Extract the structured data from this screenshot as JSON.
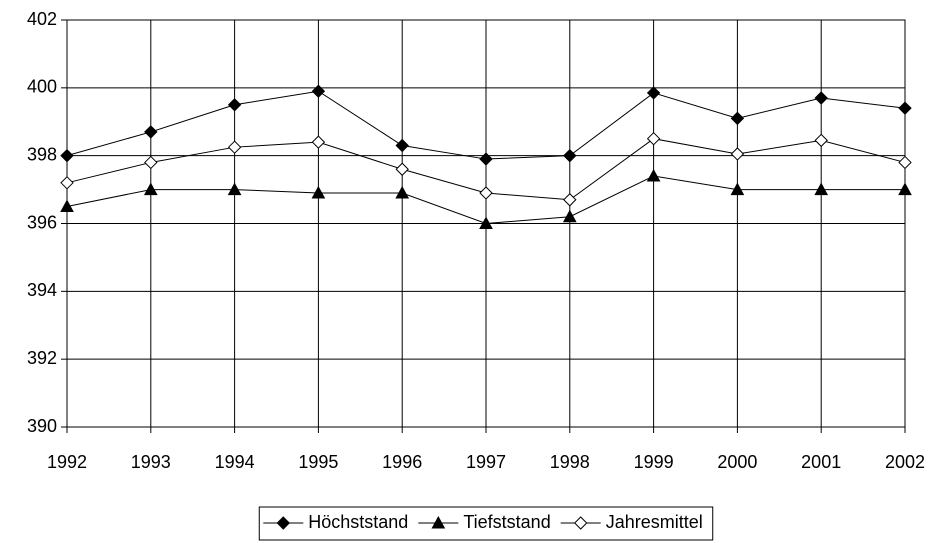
{
  "chart_data": {
    "type": "line",
    "x": [
      1992,
      1993,
      1994,
      1995,
      1996,
      1997,
      1998,
      1999,
      2000,
      2001,
      2002
    ],
    "xlim": [
      1992,
      2002
    ],
    "xticks": [
      1992,
      1993,
      1994,
      1995,
      1996,
      1997,
      1998,
      1999,
      2000,
      2001,
      2002
    ],
    "ylim": [
      390,
      402
    ],
    "yticks": [
      390,
      392,
      394,
      396,
      398,
      400,
      402
    ],
    "grid": true,
    "legend": "bottom",
    "series": [
      {
        "name": "Höchststand",
        "color": "#000000",
        "marker": "diamond",
        "values": [
          398.0,
          398.7,
          399.5,
          399.9,
          398.3,
          397.9,
          398.0,
          399.85,
          399.1,
          399.7,
          399.4
        ]
      },
      {
        "name": "Tiefststand",
        "color": "#000000",
        "marker": "triangle",
        "values": [
          396.5,
          397.0,
          397.0,
          396.9,
          396.9,
          396.0,
          396.2,
          397.4,
          397.0,
          397.0,
          397.0
        ]
      },
      {
        "name": "Jahresmittel",
        "color": "#000000",
        "marker": "diamond-open",
        "values": [
          397.2,
          397.8,
          398.25,
          398.4,
          397.6,
          396.9,
          396.7,
          398.5,
          398.05,
          398.45,
          397.8
        ]
      }
    ]
  }
}
